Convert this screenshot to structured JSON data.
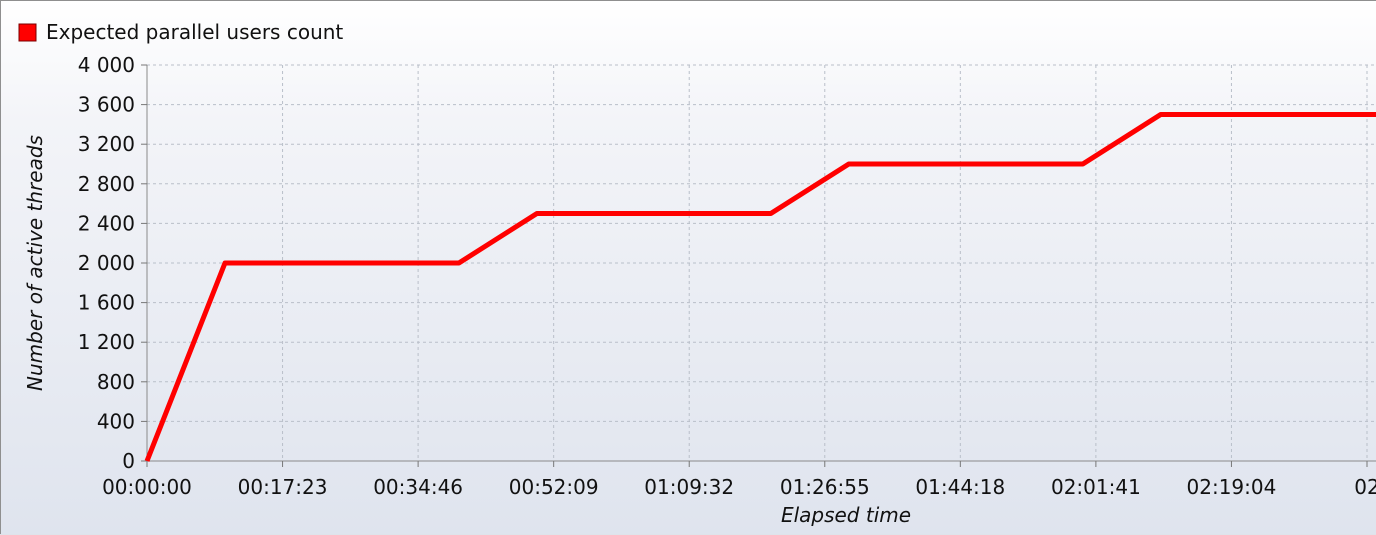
{
  "chart_data": {
    "type": "line",
    "title": "",
    "legend": {
      "position": "top-left",
      "entries": [
        {
          "label": "Expected parallel users count",
          "color": "#ff0000"
        }
      ]
    },
    "xlabel": "Elapsed time",
    "ylabel": "Number of active threads",
    "y_ticks": [
      0,
      400,
      800,
      1200,
      1600,
      2000,
      2400,
      2800,
      3200,
      3600,
      4000
    ],
    "y_tick_labels": [
      "0",
      "400",
      "800",
      "1 200",
      "1 600",
      "2 000",
      "2 400",
      "2 800",
      "3 200",
      "3 600",
      "4 000"
    ],
    "ylim": [
      0,
      4000
    ],
    "x_ticks_seconds": [
      0,
      1043,
      2086,
      3129,
      4172,
      5215,
      6258,
      7301,
      8344,
      9387
    ],
    "x_tick_labels": [
      "00:00:00",
      "00:17:23",
      "00:34:46",
      "00:52:09",
      "01:09:32",
      "01:26:55",
      "01:44:18",
      "02:01:41",
      "02:19:04",
      "02"
    ],
    "xlim_seconds": [
      0,
      9387
    ],
    "grid": true,
    "series": [
      {
        "name": "Expected parallel users count",
        "color": "#ff0000",
        "points": [
          {
            "t": "00:00:00",
            "x": 0,
            "y": 0
          },
          {
            "t": "00:10:00",
            "x": 600,
            "y": 2000
          },
          {
            "t": "00:40:00",
            "x": 2400,
            "y": 2000
          },
          {
            "t": "00:50:00",
            "x": 3000,
            "y": 2500
          },
          {
            "t": "01:20:00",
            "x": 4800,
            "y": 2500
          },
          {
            "t": "01:30:00",
            "x": 5400,
            "y": 3000
          },
          {
            "t": "02:00:00",
            "x": 7200,
            "y": 3000
          },
          {
            "t": "02:10:00",
            "x": 7800,
            "y": 3500
          },
          {
            "t": "02:40:00",
            "x": 9600,
            "y": 3500
          }
        ]
      }
    ]
  }
}
